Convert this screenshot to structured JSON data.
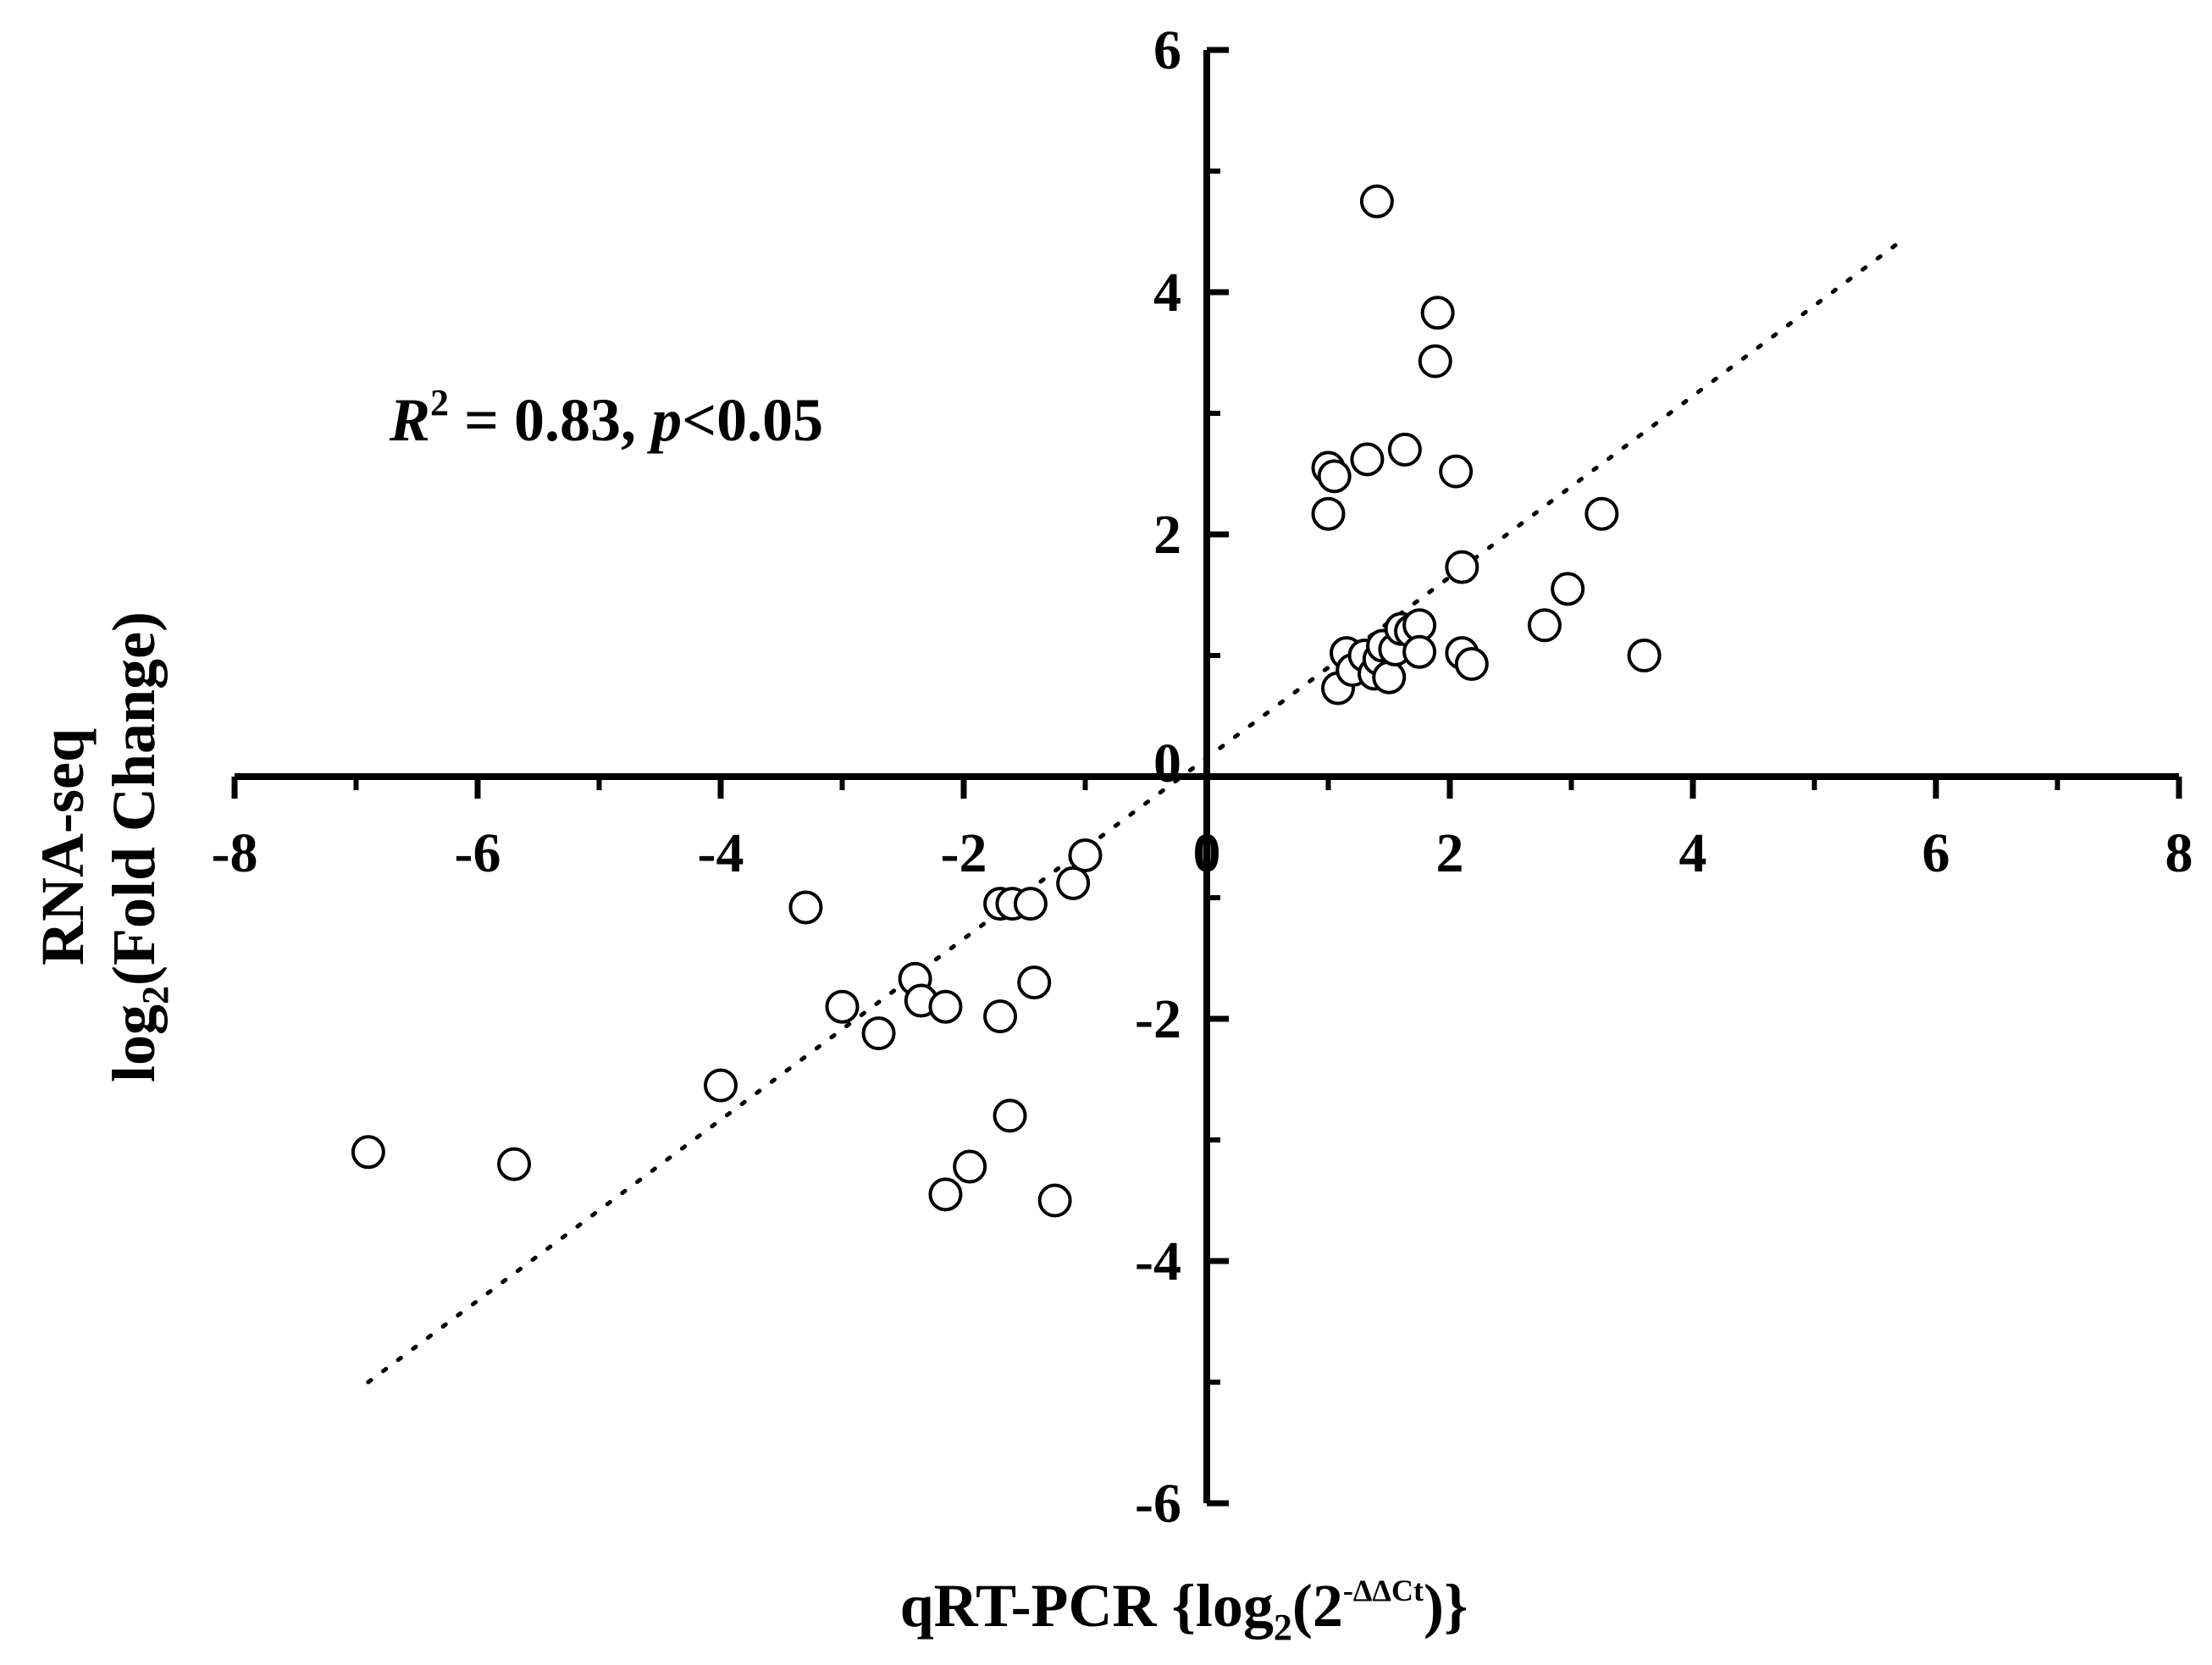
{
  "chart_data": {
    "type": "scatter",
    "title": "",
    "xlabel": "qRT-PCR {log2(2-ΔΔCt)}",
    "xlabel_parts": {
      "main": "qRT-PCR {log",
      "sub": "2",
      "mid": "(2",
      "sup": "-ΔΔCt",
      "end": ")}"
    },
    "ylabel_line1": "RNA-seq",
    "ylabel_line2_parts": {
      "main": "log",
      "sub": "2",
      "end": "(Fold Change)"
    },
    "annotation_parts": {
      "r": "R",
      "sup": "2",
      "mid": " = 0.83, ",
      "p": "p",
      "end": "<0.05"
    },
    "xlim": [
      -8,
      8
    ],
    "ylim": [
      -6,
      6
    ],
    "x_ticks": [
      -8,
      -6,
      -4,
      -2,
      0,
      2,
      4,
      6,
      8
    ],
    "y_ticks": [
      -6,
      -4,
      -2,
      0,
      2,
      4,
      6
    ],
    "x_tick_labels": [
      "-8",
      "-6",
      "-4",
      "-2",
      "0",
      "2",
      "4",
      "6",
      "8"
    ],
    "y_tick_labels": [
      "-6",
      "-4",
      "-2",
      "0",
      "2",
      "4",
      "6"
    ],
    "grid": false,
    "marker": "open-circle",
    "trendline": {
      "style": "dotted",
      "x_start": -6.9,
      "y_start": -5.0,
      "x_end": 5.75,
      "y_end": 4.45
    },
    "points": [
      {
        "x": -6.9,
        "y": -3.1
      },
      {
        "x": -5.7,
        "y": -3.2
      },
      {
        "x": -4.0,
        "y": -2.55
      },
      {
        "x": -3.3,
        "y": -1.08
      },
      {
        "x": -3.0,
        "y": -1.9
      },
      {
        "x": -2.7,
        "y": -2.12
      },
      {
        "x": -2.4,
        "y": -1.67
      },
      {
        "x": -2.35,
        "y": -1.85
      },
      {
        "x": -2.15,
        "y": -1.9
      },
      {
        "x": -2.15,
        "y": -3.45
      },
      {
        "x": -1.95,
        "y": -3.22
      },
      {
        "x": -1.7,
        "y": -1.05
      },
      {
        "x": -1.7,
        "y": -1.98
      },
      {
        "x": -1.6,
        "y": -1.05
      },
      {
        "x": -1.62,
        "y": -2.8
      },
      {
        "x": -1.45,
        "y": -1.05
      },
      {
        "x": -1.42,
        "y": -1.7
      },
      {
        "x": -1.25,
        "y": -3.5
      },
      {
        "x": -1.1,
        "y": -0.88
      },
      {
        "x": -1.0,
        "y": -0.65
      },
      {
        "x": 1.0,
        "y": 2.55
      },
      {
        "x": 1.05,
        "y": 2.48
      },
      {
        "x": 1.0,
        "y": 2.17
      },
      {
        "x": 1.32,
        "y": 2.62
      },
      {
        "x": 1.4,
        "y": 4.75
      },
      {
        "x": 1.63,
        "y": 2.7
      },
      {
        "x": 1.9,
        "y": 3.83
      },
      {
        "x": 1.88,
        "y": 3.43
      },
      {
        "x": 2.05,
        "y": 2.52
      },
      {
        "x": 2.1,
        "y": 1.73
      },
      {
        "x": 3.25,
        "y": 2.17
      },
      {
        "x": 2.97,
        "y": 1.55
      },
      {
        "x": 2.78,
        "y": 1.25
      },
      {
        "x": 3.6,
        "y": 1.0
      },
      {
        "x": 1.08,
        "y": 0.73
      },
      {
        "x": 1.15,
        "y": 1.02
      },
      {
        "x": 1.2,
        "y": 0.88
      },
      {
        "x": 1.3,
        "y": 1.0
      },
      {
        "x": 1.38,
        "y": 0.85
      },
      {
        "x": 1.42,
        "y": 0.97
      },
      {
        "x": 1.45,
        "y": 1.08
      },
      {
        "x": 1.5,
        "y": 0.82
      },
      {
        "x": 1.55,
        "y": 1.05
      },
      {
        "x": 1.6,
        "y": 1.22
      },
      {
        "x": 1.68,
        "y": 1.2
      },
      {
        "x": 1.75,
        "y": 1.25
      },
      {
        "x": 1.75,
        "y": 1.03
      },
      {
        "x": 2.1,
        "y": 1.02
      },
      {
        "x": 2.18,
        "y": 0.93
      }
    ]
  }
}
